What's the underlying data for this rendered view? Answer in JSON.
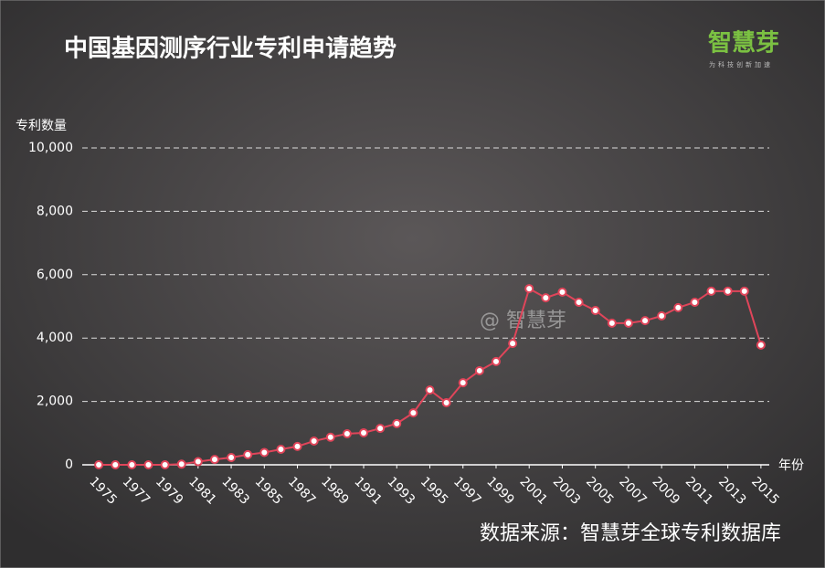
{
  "chart_data": {
    "type": "line",
    "title": "中国基因测序行业专利申请趋势",
    "logo": "智慧芽",
    "logo_tagline": "为科技创新加速",
    "watermark": "@ 智慧芽",
    "y_label": "专利数量",
    "x_label": "年份",
    "source": "数据来源：智慧芽全球专利数据库",
    "x": [
      1975,
      1976,
      1977,
      1978,
      1979,
      1980,
      1981,
      1982,
      1983,
      1984,
      1985,
      1986,
      1987,
      1988,
      1989,
      1990,
      1991,
      1992,
      1993,
      1994,
      1995,
      1996,
      1997,
      1998,
      1999,
      2000,
      2001,
      2002,
      2003,
      2004,
      2005,
      2006,
      2007,
      2008,
      2009,
      2010,
      2011,
      2012,
      2013,
      2014,
      2015
    ],
    "series": [
      {
        "color": "#e0455a",
        "values": [
          0,
          0,
          0,
          0,
          0,
          20,
          100,
          170,
          230,
          320,
          390,
          490,
          580,
          750,
          870,
          980,
          1010,
          1150,
          1300,
          1640,
          2360,
          1960,
          2590,
          2970,
          3260,
          3830,
          5560,
          5270,
          5450,
          5130,
          4870,
          4470,
          4470,
          4550,
          4700,
          4960,
          5130,
          5480,
          5480,
          5480,
          3780
        ]
      }
    ],
    "xlim": [
      1974,
      2016
    ],
    "xticks": [
      1975,
      1977,
      1979,
      1981,
      1983,
      1985,
      1987,
      1989,
      1991,
      1993,
      1995,
      1997,
      1999,
      2001,
      2003,
      2005,
      2007,
      2009,
      2011,
      2013,
      2015
    ],
    "ylim": [
      0,
      10000
    ],
    "yticks": [
      0,
      {
        "value": 2000,
        "label": "2,000"
      },
      {
        "value": 4000,
        "label": "4,000"
      },
      {
        "value": 6000,
        "label": "6,000"
      },
      {
        "value": 8000,
        "label": "8,000"
      },
      {
        "value": 10000,
        "label": "10,000"
      }
    ],
    "grid": true
  }
}
